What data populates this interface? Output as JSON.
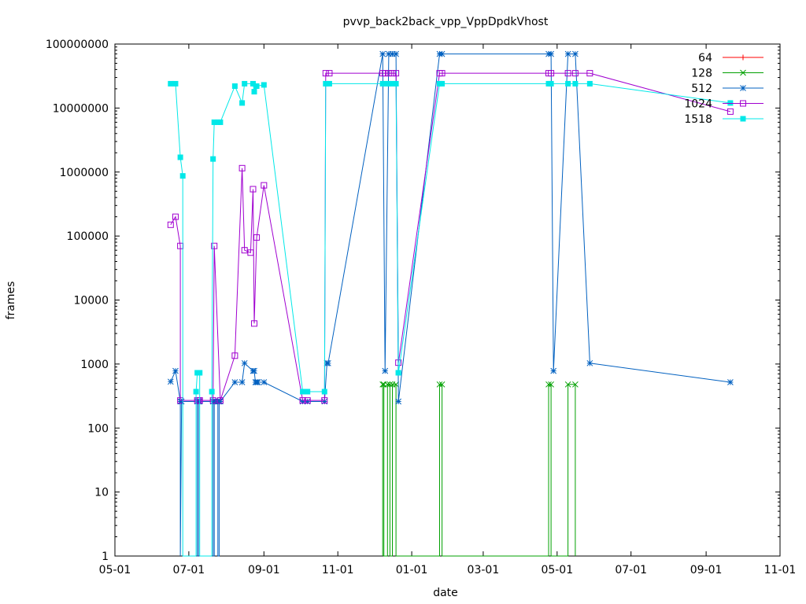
{
  "chart_data": {
    "type": "line",
    "title": "pvvp_back2back_vpp_VppDpdkVhost",
    "xlabel": "date",
    "ylabel": "frames",
    "yscale": "log",
    "ylim": [
      1,
      100000000
    ],
    "xlim": [
      "2016-05-01",
      "2017-11-01"
    ],
    "grid": "none",
    "legend_position": "top-right",
    "x_ticks": [
      "05-01",
      "07-01",
      "09-01",
      "11-01",
      "01-01",
      "03-01",
      "05-01",
      "07-01",
      "09-01",
      "11-01"
    ],
    "x_tick_dates": [
      "2016-05-01",
      "2016-07-01",
      "2016-09-01",
      "2016-11-01",
      "2017-01-01",
      "2017-03-01",
      "2017-05-01",
      "2017-07-01",
      "2017-09-01",
      "2017-11-01"
    ],
    "y_ticks": [
      "1",
      "10",
      "100",
      "1000",
      "10000",
      "100000",
      "1000000",
      "10000000",
      "100000000"
    ],
    "y_tick_values": [
      1,
      10,
      100,
      1000,
      10000,
      100000,
      1000000,
      10000000,
      100000000
    ],
    "series": [
      {
        "name": "64",
        "color": "#ff0000",
        "marker": "plus",
        "x": [],
        "y": []
      },
      {
        "name": "128",
        "color": "#00a000",
        "marker": "cross",
        "x": [
          "2016-12-08",
          "2016-12-08",
          "2016-12-09",
          "2016-12-09",
          "2016-12-12",
          "2016-12-12",
          "2016-12-14",
          "2016-12-14",
          "2016-12-16",
          "2016-12-16",
          "2016-12-19",
          "2016-12-19",
          "2017-01-24",
          "2017-01-24",
          "2017-01-26",
          "2017-01-26",
          "2017-04-24",
          "2017-04-24",
          "2017-04-26",
          "2017-04-26",
          "2017-05-10",
          "2017-05-10",
          "2017-05-16",
          "2017-05-16"
        ],
        "y": [
          1,
          480,
          480,
          1,
          1,
          480,
          480,
          1,
          1,
          480,
          480,
          1,
          1,
          480,
          480,
          1,
          1,
          480,
          480,
          1,
          1,
          480,
          480,
          1
        ]
      },
      {
        "name": "512",
        "color": "#0060c0",
        "marker": "star",
        "x": [
          "2016-06-16",
          "2016-06-20",
          "2016-06-24",
          "2016-06-24",
          "2016-06-25",
          "2016-07-08",
          "2016-07-08",
          "2016-07-09",
          "2016-07-09",
          "2016-07-10",
          "2016-07-21",
          "2016-07-21",
          "2016-07-22",
          "2016-07-22",
          "2016-07-23",
          "2016-07-25",
          "2016-07-25",
          "2016-07-26",
          "2016-07-26",
          "2016-07-27",
          "2016-08-08",
          "2016-08-14",
          "2016-08-16",
          "2016-08-23",
          "2016-08-24",
          "2016-08-25",
          "2016-08-26",
          "2016-08-27",
          "2016-09-01",
          "2016-10-03",
          "2016-10-07",
          "2016-10-21",
          "2016-10-23",
          "2016-10-24",
          "2016-12-08",
          "2016-12-10",
          "2016-12-13",
          "2016-12-16",
          "2016-12-19",
          "2016-12-21",
          "2017-01-24",
          "2017-01-26",
          "2017-04-24",
          "2017-04-26",
          "2017-04-28",
          "2017-05-10",
          "2017-05-16",
          "2017-05-28",
          "2017-09-21"
        ],
        "y": [
          530,
          780,
          260,
          1,
          260,
          260,
          1,
          1,
          260,
          260,
          260,
          1,
          1,
          260,
          260,
          260,
          1,
          1,
          260,
          260,
          520,
          520,
          1030,
          780,
          780,
          520,
          520,
          520,
          520,
          260,
          260,
          260,
          1030,
          1030,
          70000000,
          780,
          70000000,
          70000000,
          70000000,
          260,
          70000000,
          70000000,
          70000000,
          70000000,
          780,
          70000000,
          70000000,
          1030,
          520
        ]
      },
      {
        "name": "1024",
        "color": "#a000d0",
        "marker": "square-open",
        "x": [
          "2016-06-16",
          "2016-06-20",
          "2016-06-24",
          "2016-06-24",
          "2016-07-08",
          "2016-07-09",
          "2016-07-10",
          "2016-07-21",
          "2016-07-22",
          "2016-07-27",
          "2016-08-08",
          "2016-08-14",
          "2016-08-16",
          "2016-08-21",
          "2016-08-23",
          "2016-08-24",
          "2016-08-26",
          "2016-09-01",
          "2016-10-03",
          "2016-10-07",
          "2016-10-21",
          "2016-10-22",
          "2016-10-25",
          "2016-12-08",
          "2016-12-10",
          "2016-12-13",
          "2016-12-16",
          "2016-12-19",
          "2016-12-21",
          "2017-01-24",
          "2017-01-26",
          "2017-04-24",
          "2017-04-26",
          "2017-05-10",
          "2017-05-16",
          "2017-05-28",
          "2017-09-21"
        ],
        "y": [
          150000,
          200000,
          70000,
          270,
          270,
          270,
          270,
          270,
          70000,
          270,
          1350,
          1150000,
          60000,
          55000,
          540000,
          4300,
          95000,
          620000,
          270,
          270,
          270,
          35000000,
          35000000,
          35000000,
          35000000,
          35000000,
          35000000,
          35000000,
          1050,
          35000000,
          35000000,
          35000000,
          35000000,
          35000000,
          35000000,
          35000000,
          8800000
        ]
      },
      {
        "name": "1518",
        "color": "#00e8e8",
        "marker": "square-filled",
        "x": [
          "2016-06-16",
          "2016-06-20",
          "2016-06-24",
          "2016-06-26",
          "2016-06-26",
          "2016-07-07",
          "2016-07-07",
          "2016-07-08",
          "2016-07-10",
          "2016-07-10",
          "2016-07-20",
          "2016-07-20",
          "2016-07-21",
          "2016-07-22",
          "2016-07-25",
          "2016-07-27",
          "2016-08-08",
          "2016-08-14",
          "2016-08-16",
          "2016-08-23",
          "2016-08-24",
          "2016-08-26",
          "2016-09-01",
          "2016-10-03",
          "2016-10-07",
          "2016-10-21",
          "2016-10-22",
          "2016-10-25",
          "2016-12-08",
          "2016-12-10",
          "2016-12-13",
          "2016-12-16",
          "2016-12-19",
          "2016-12-21",
          "2016-12-21",
          "2017-01-24",
          "2017-01-26",
          "2017-04-24",
          "2017-04-26",
          "2017-05-10",
          "2017-05-16",
          "2017-05-28",
          "2017-09-21"
        ],
        "y": [
          24000000,
          24000000,
          1700000,
          870000,
          1,
          1,
          370,
          730,
          730,
          1,
          1,
          370,
          1600000,
          6000000,
          6000000,
          6000000,
          22000000,
          12000000,
          24000000,
          24000000,
          18000000,
          22000000,
          23000000,
          370,
          370,
          370,
          24000000,
          24000000,
          24000000,
          24000000,
          24000000,
          24000000,
          24000000,
          730,
          730,
          24000000,
          24000000,
          24000000,
          24000000,
          24000000,
          24000000,
          24000000,
          12000000
        ]
      }
    ]
  }
}
